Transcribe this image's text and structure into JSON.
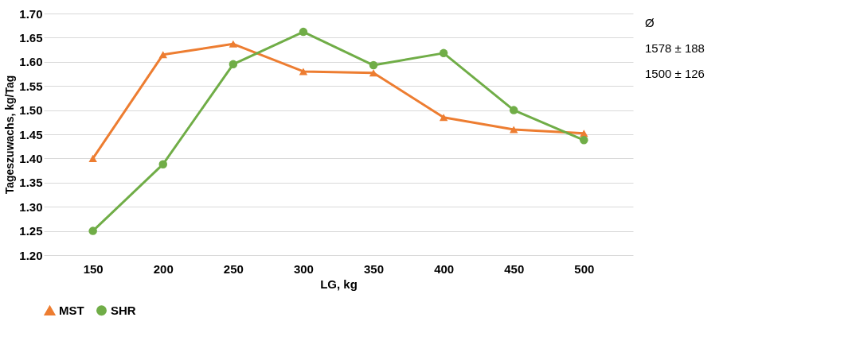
{
  "chart_data": {
    "type": "line",
    "xlabel": "LG, kg",
    "ylabel": "Tageszuwachs, kg/Tag",
    "categories": [
      "150",
      "200",
      "250",
      "300",
      "350",
      "400",
      "450",
      "500"
    ],
    "series": [
      {
        "name": "MST",
        "color": "#ed7d31",
        "marker": "triangle",
        "values": [
          1.4,
          1.615,
          1.637,
          1.58,
          1.577,
          1.485,
          1.46,
          1.452
        ]
      },
      {
        "name": "SHR",
        "color": "#70ad47",
        "marker": "circle",
        "values": [
          1.25,
          1.388,
          1.595,
          1.662,
          1.593,
          1.618,
          1.5,
          1.438
        ]
      }
    ],
    "ylim": [
      1.2,
      1.7
    ],
    "yticks": [
      {
        "value": 1.2,
        "label": "1.20"
      },
      1.25,
      {
        "value": 1.3,
        "label": "1.30"
      },
      1.35,
      {
        "value": 1.4,
        "label": "1.40"
      },
      1.45,
      {
        "value": 1.5,
        "label": "1.50"
      },
      1.55,
      {
        "value": 1.6,
        "label": "1.60"
      },
      1.65,
      {
        "value": 1.7,
        "label": "1.70"
      }
    ],
    "grid": "y",
    "legend": "bottom",
    "line_style": "solid",
    "annotations": [
      "Ø",
      "1578 ± 188",
      "1500 ± 126"
    ]
  }
}
